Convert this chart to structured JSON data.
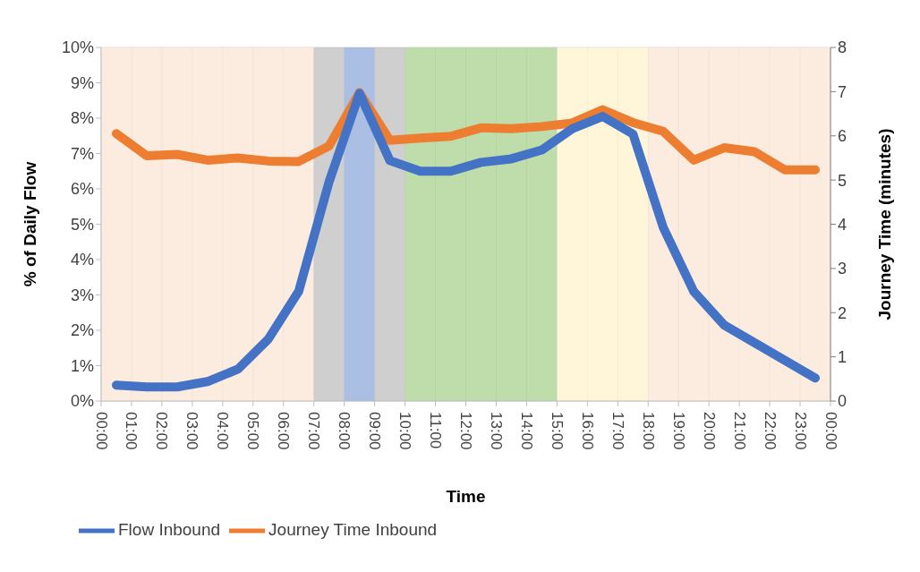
{
  "chart_data": {
    "type": "line",
    "xlabel": "Time",
    "ylabel": "% of Daily Flow",
    "y2label": "Journey Time (minutes)",
    "x": [
      0.5,
      1.5,
      2.5,
      3.5,
      4.5,
      5.5,
      6.5,
      7.5,
      8.5,
      9.5,
      10.5,
      11.5,
      12.5,
      13.5,
      14.5,
      15.5,
      16.5,
      17.5,
      18.5,
      19.5,
      20.5,
      21.5,
      22.5,
      23.5
    ],
    "series": [
      {
        "name": "Flow Inbound",
        "color": "#4472c4",
        "values": [
          0.45,
          0.4,
          0.4,
          0.55,
          0.9,
          1.75,
          3.1,
          6.2,
          8.7,
          6.8,
          6.5,
          6.5,
          6.75,
          6.85,
          7.1,
          7.7,
          8.05,
          7.55,
          4.9,
          3.1,
          2.15,
          1.65,
          1.15,
          0.65
        ]
      },
      {
        "name": "Journey Time Inbound",
        "color": "#ed7d31",
        "axis": "y2",
        "values": [
          6.05,
          5.55,
          5.58,
          5.45,
          5.5,
          5.43,
          5.42,
          5.77,
          6.98,
          5.9,
          5.95,
          5.99,
          6.18,
          6.16,
          6.21,
          6.29,
          6.59,
          6.3,
          6.1,
          5.45,
          5.73,
          5.64,
          5.23,
          5.23
        ]
      }
    ],
    "xlim": [
      0,
      24
    ],
    "xticks": [
      {
        "value": 0,
        "label": "00:00"
      },
      {
        "value": 1,
        "label": "01:00"
      },
      {
        "value": 2,
        "label": "02:00"
      },
      {
        "value": 3,
        "label": "03:00"
      },
      {
        "value": 4,
        "label": "04:00"
      },
      {
        "value": 5,
        "label": "05:00"
      },
      {
        "value": 6,
        "label": "06:00"
      },
      {
        "value": 7,
        "label": "07:00"
      },
      {
        "value": 8,
        "label": "08:00"
      },
      {
        "value": 9,
        "label": "09:00"
      },
      {
        "value": 10,
        "label": "10:00"
      },
      {
        "value": 11,
        "label": "11:00"
      },
      {
        "value": 12,
        "label": "12:00"
      },
      {
        "value": 13,
        "label": "13:00"
      },
      {
        "value": 14,
        "label": "14:00"
      },
      {
        "value": 15,
        "label": "15:00"
      },
      {
        "value": 16,
        "label": "16:00"
      },
      {
        "value": 17,
        "label": "17:00"
      },
      {
        "value": 18,
        "label": "18:00"
      },
      {
        "value": 19,
        "label": "19:00"
      },
      {
        "value": 20,
        "label": "20:00"
      },
      {
        "value": 21,
        "label": "21:00"
      },
      {
        "value": 22,
        "label": "22:00"
      },
      {
        "value": 23,
        "label": "23:00"
      },
      {
        "value": 24,
        "label": "00:00"
      }
    ],
    "ylim": [
      0,
      10
    ],
    "yticks": [
      {
        "value": 0,
        "label": "0%"
      },
      {
        "value": 1,
        "label": "1%"
      },
      {
        "value": 2,
        "label": "2%"
      },
      {
        "value": 3,
        "label": "3%"
      },
      {
        "value": 4,
        "label": "4%"
      },
      {
        "value": 5,
        "label": "5%"
      },
      {
        "value": 6,
        "label": "6%"
      },
      {
        "value": 7,
        "label": "7%"
      },
      {
        "value": 8,
        "label": "8%"
      },
      {
        "value": 9,
        "label": "9%"
      },
      {
        "value": 10,
        "label": "10%"
      }
    ],
    "y2lim": [
      0,
      8
    ],
    "y2ticks": [
      0,
      1,
      2,
      3,
      4,
      5,
      6,
      7,
      8
    ],
    "bands": [
      {
        "axis": "x",
        "from": 0,
        "to": 7,
        "color": "#fbe5d6"
      },
      {
        "axis": "x",
        "from": 7,
        "to": 8,
        "color": "#bfbfbf"
      },
      {
        "axis": "x",
        "from": 8,
        "to": 9,
        "color": "#8faadc"
      },
      {
        "axis": "x",
        "from": 9,
        "to": 10,
        "color": "#bfbfbf"
      },
      {
        "axis": "x",
        "from": 10,
        "to": 15,
        "color": "#a9d18e"
      },
      {
        "axis": "x",
        "from": 15,
        "to": 18,
        "color": "#fff2cc"
      },
      {
        "axis": "x",
        "from": 18,
        "to": 24,
        "color": "#fbe5d6"
      }
    ],
    "grid": true,
    "legend": "bottom left",
    "marker": "none",
    "line_style": "solid"
  }
}
